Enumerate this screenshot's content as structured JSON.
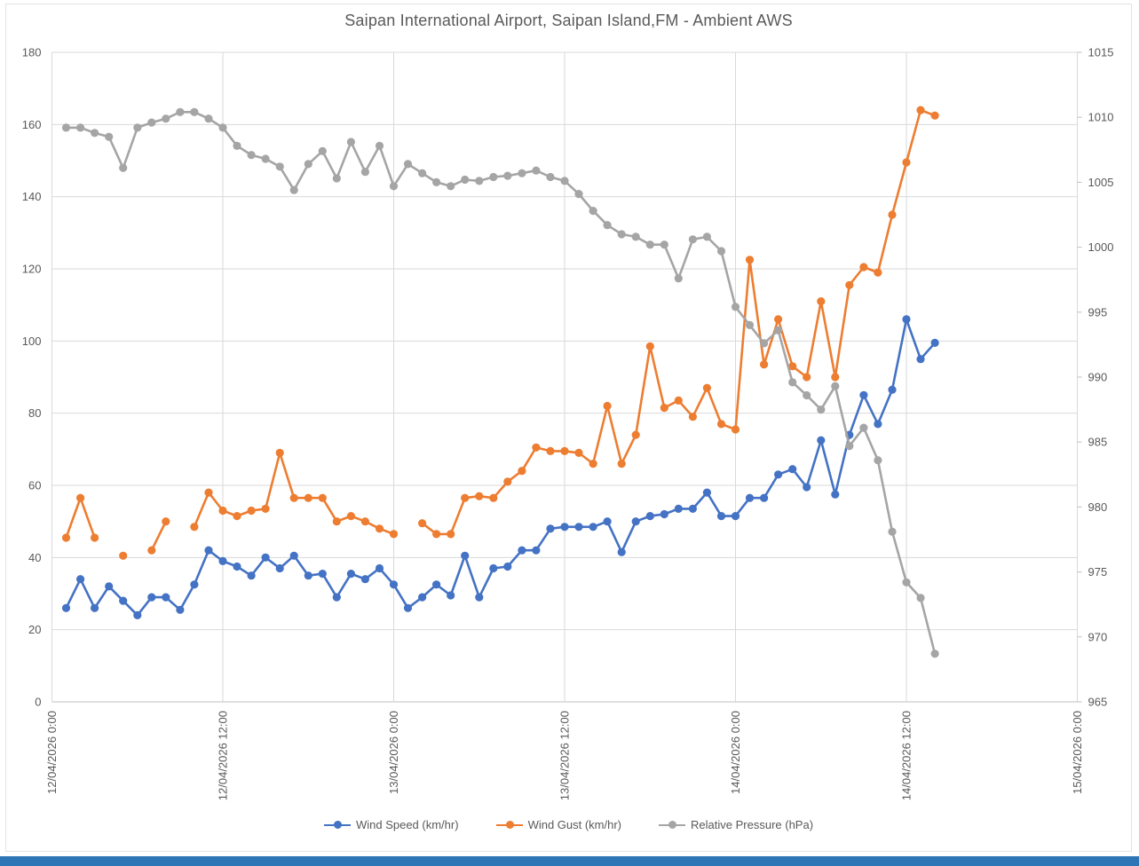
{
  "window": {
    "bottom_bar_color": "#2e75b6"
  },
  "chart_data": {
    "type": "line",
    "title": "Saipan International Airport, Saipan Island,FM - Ambient AWS",
    "grid": true,
    "legend_position": "bottom",
    "colors": {
      "grid": "#d9d9d9",
      "axis_text": "#595959",
      "title": "#595959"
    },
    "y_left": {
      "min": 0,
      "max": 180,
      "step": 20,
      "tick_labels": [
        "0",
        "20",
        "40",
        "60",
        "80",
        "100",
        "120",
        "140",
        "160",
        "180"
      ]
    },
    "y_right": {
      "min": 965,
      "max": 1015,
      "step": 5,
      "tick_labels": [
        "965",
        "970",
        "975",
        "980",
        "985",
        "990",
        "995",
        "1000",
        "1005",
        "1010",
        "1015"
      ]
    },
    "x_axis": {
      "start_hour_offset": 1,
      "total_hours": 72,
      "tick_every_hours": 12,
      "tick_labels": [
        "12/04/2026 0:00",
        "12/04/2026 12:00",
        "13/04/2026 0:00",
        "13/04/2026 12:00",
        "14/04/2026 0:00",
        "14/04/2026 12:00",
        "15/04/2026 0:00"
      ]
    },
    "x": [
      "12/04/2026 1:00",
      "12/04/2026 2:00",
      "12/04/2026 3:00",
      "12/04/2026 4:00",
      "12/04/2026 5:00",
      "12/04/2026 6:00",
      "12/04/2026 7:00",
      "12/04/2026 8:00",
      "12/04/2026 9:00",
      "12/04/2026 10:00",
      "12/04/2026 11:00",
      "12/04/2026 12:00",
      "12/04/2026 13:00",
      "12/04/2026 14:00",
      "12/04/2026 15:00",
      "12/04/2026 16:00",
      "12/04/2026 17:00",
      "12/04/2026 18:00",
      "12/04/2026 19:00",
      "12/04/2026 20:00",
      "12/04/2026 21:00",
      "12/04/2026 22:00",
      "12/04/2026 23:00",
      "13/04/2026 0:00",
      "13/04/2026 1:00",
      "13/04/2026 2:00",
      "13/04/2026 3:00",
      "13/04/2026 4:00",
      "13/04/2026 5:00",
      "13/04/2026 6:00",
      "13/04/2026 7:00",
      "13/04/2026 8:00",
      "13/04/2026 9:00",
      "13/04/2026 10:00",
      "13/04/2026 11:00",
      "13/04/2026 12:00",
      "13/04/2026 13:00",
      "13/04/2026 14:00",
      "13/04/2026 15:00",
      "13/04/2026 16:00",
      "13/04/2026 17:00",
      "13/04/2026 18:00",
      "13/04/2026 19:00",
      "13/04/2026 20:00",
      "13/04/2026 21:00",
      "13/04/2026 22:00",
      "13/04/2026 23:00",
      "14/04/2026 0:00",
      "14/04/2026 1:00",
      "14/04/2026 2:00",
      "14/04/2026 3:00",
      "14/04/2026 4:00",
      "14/04/2026 5:00",
      "14/04/2026 6:00",
      "14/04/2026 7:00",
      "14/04/2026 8:00",
      "14/04/2026 9:00",
      "14/04/2026 10:00",
      "14/04/2026 11:00",
      "14/04/2026 12:00",
      "14/04/2026 13:00",
      "14/04/2026 14:00"
    ],
    "series": [
      {
        "name": "Wind Speed (km/hr)",
        "color": "#4472c4",
        "axis": "left",
        "values": [
          26,
          34,
          26,
          32,
          28,
          24,
          29,
          29,
          25.5,
          32.5,
          42,
          39,
          37.5,
          35,
          40,
          37,
          40.5,
          35,
          35.5,
          29,
          35.5,
          34,
          37,
          32.5,
          26,
          29,
          32.5,
          29.5,
          40.5,
          29,
          37,
          37.5,
          42,
          42,
          48,
          48.5,
          48.5,
          48.5,
          50,
          41.5,
          50,
          51.5,
          52,
          53.5,
          53.5,
          58,
          51.5,
          51.5,
          56.5,
          56.5,
          63,
          64.5,
          59.5,
          72.5,
          57.5,
          74,
          85,
          77,
          86.5,
          106,
          95,
          99.5
        ]
      },
      {
        "name": "Wind Gust (km/hr)",
        "color": "#ed7d31",
        "axis": "left",
        "values": [
          45.5,
          56.5,
          45.5,
          null,
          40.5,
          null,
          42,
          50,
          null,
          48.5,
          58,
          53,
          51.5,
          53,
          53.5,
          69,
          56.5,
          56.5,
          56.5,
          50,
          51.5,
          50,
          48,
          46.5,
          null,
          49.5,
          46.5,
          46.5,
          56.5,
          57,
          56.5,
          61,
          64,
          70.5,
          69.5,
          69.5,
          69,
          66,
          82,
          66,
          74,
          98.5,
          81.5,
          83.5,
          79,
          87,
          77,
          75.5,
          122.5,
          93.5,
          106,
          93,
          90,
          111,
          90,
          115.5,
          120.5,
          119,
          135,
          149.5,
          164,
          162.5
        ]
      },
      {
        "name": "Relative Pressure (hPa)",
        "color": "#a5a5a5",
        "axis": "right",
        "values": [
          1009.2,
          1009.2,
          1008.8,
          1008.5,
          1006.1,
          1009.2,
          1009.6,
          1009.9,
          1010.4,
          1010.4,
          1009.9,
          1009.2,
          1007.8,
          1007.1,
          1006.8,
          1006.2,
          1004.4,
          1006.4,
          1007.4,
          1005.3,
          1008.1,
          1005.8,
          1007.8,
          1004.7,
          1006.4,
          1005.7,
          1005.0,
          1004.7,
          1005.2,
          1005.1,
          1005.4,
          1005.5,
          1005.7,
          1005.9,
          1005.4,
          1005.1,
          1004.1,
          1002.8,
          1001.7,
          1001.0,
          1000.8,
          1000.2,
          1000.2,
          997.6,
          1000.6,
          1000.8,
          999.7,
          995.4,
          994.0,
          992.6,
          993.6,
          989.6,
          988.6,
          987.5,
          989.3,
          984.7,
          986.1,
          983.6,
          978.1,
          974.2,
          973.0,
          968.7
        ]
      }
    ]
  }
}
